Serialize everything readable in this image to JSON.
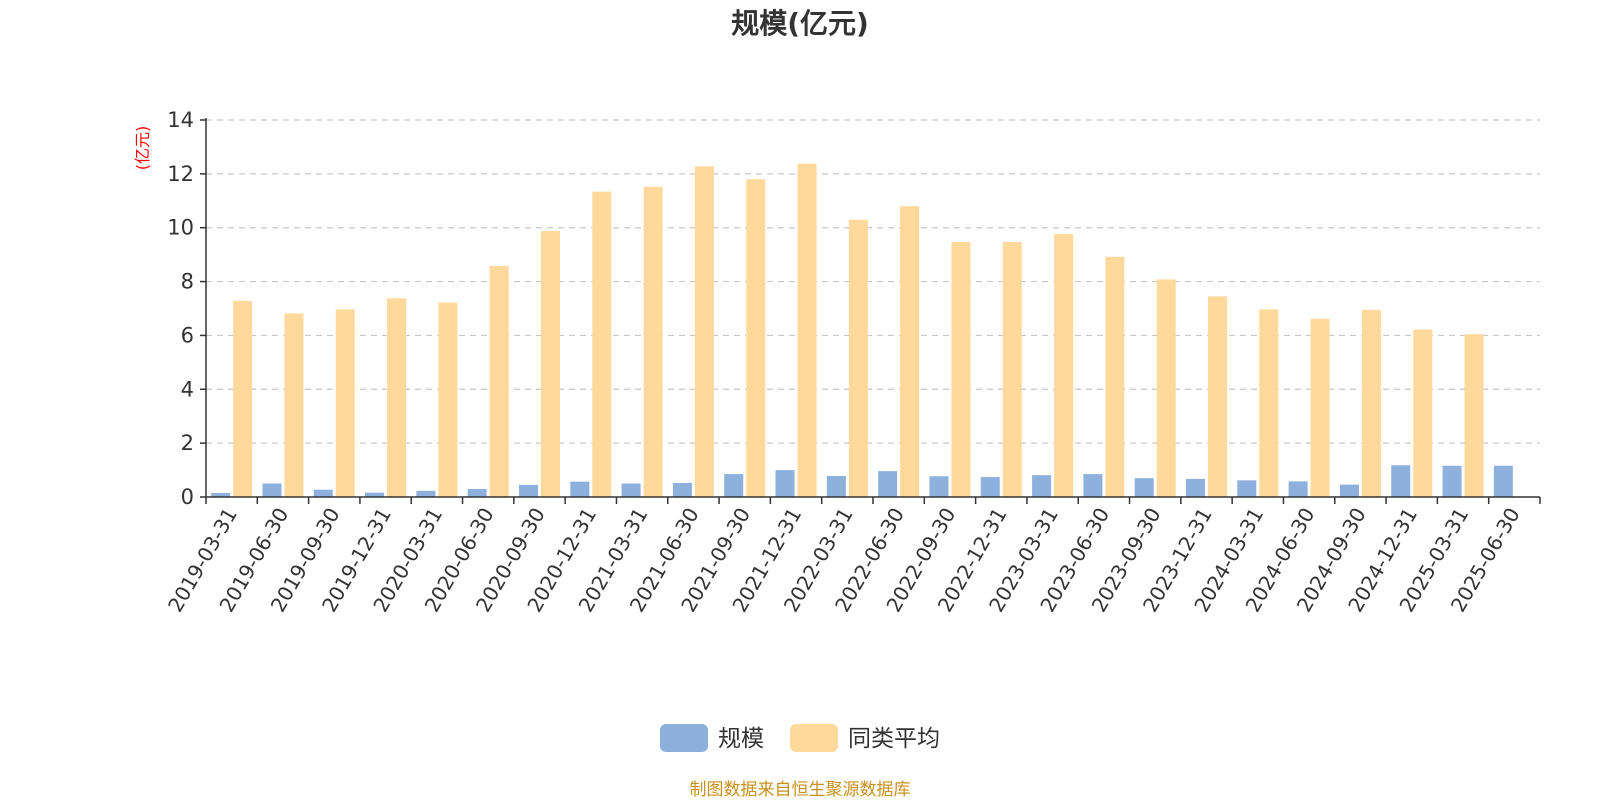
{
  "chart_data": {
    "type": "bar",
    "title": "规模(亿元)",
    "ylabel": "(亿元)",
    "ylim": [
      0,
      14
    ],
    "yticks": [
      0,
      2,
      4,
      6,
      8,
      10,
      12,
      14
    ],
    "grid": true,
    "legend_position": "bottom",
    "categories": [
      "2019-03-31",
      "2019-06-30",
      "2019-09-30",
      "2019-12-31",
      "2020-03-31",
      "2020-06-30",
      "2020-09-30",
      "2020-12-31",
      "2021-03-31",
      "2021-06-30",
      "2021-09-30",
      "2021-12-31",
      "2022-03-31",
      "2022-06-30",
      "2022-09-30",
      "2022-12-31",
      "2023-03-31",
      "2023-06-30",
      "2023-09-30",
      "2023-12-31",
      "2024-03-31",
      "2024-06-30",
      "2024-09-30",
      "2024-12-31",
      "2025-03-31",
      "2025-06-30"
    ],
    "series": [
      {
        "name": "规模",
        "color": "#8eb0dc",
        "values": [
          0.15,
          0.5,
          0.27,
          0.16,
          0.23,
          0.3,
          0.45,
          0.57,
          0.5,
          0.52,
          0.85,
          1.0,
          0.78,
          0.96,
          0.77,
          0.74,
          0.81,
          0.85,
          0.7,
          0.67,
          0.62,
          0.58,
          0.46,
          1.18,
          1.16,
          1.16
        ]
      },
      {
        "name": "同类平均",
        "color": "#ffd99c",
        "values": [
          7.28,
          6.82,
          6.97,
          7.38,
          7.22,
          8.58,
          9.88,
          11.34,
          11.52,
          12.28,
          11.8,
          12.38,
          10.3,
          10.8,
          9.47,
          9.47,
          9.77,
          8.92,
          8.08,
          7.45,
          6.97,
          6.62,
          6.95,
          6.22,
          6.05,
          null
        ]
      }
    ],
    "source_note": "制图数据来自恒生聚源数据库"
  }
}
